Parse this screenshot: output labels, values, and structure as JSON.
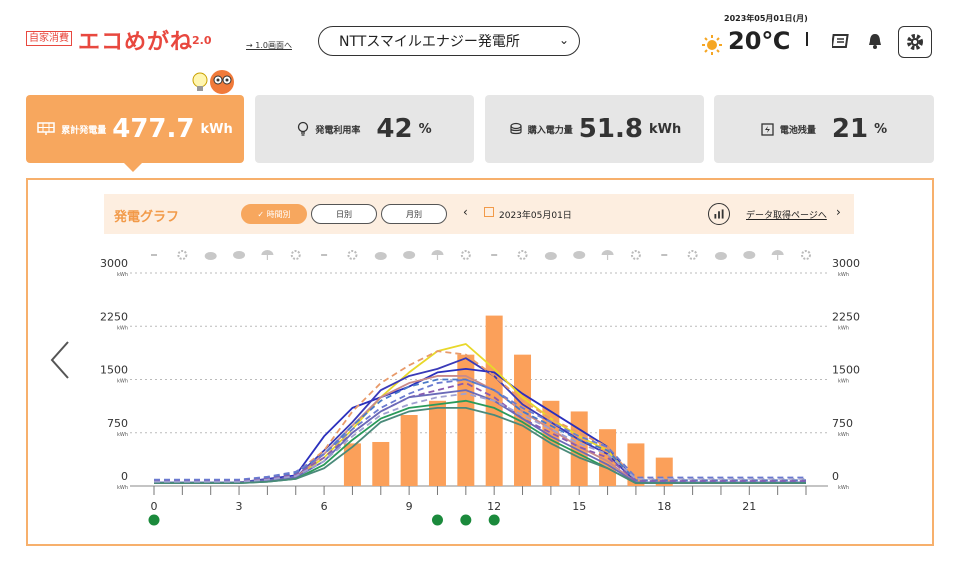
{
  "header": {
    "logo_badge": "自家消費",
    "logo_title": "エコめがね",
    "logo_version": "2.0",
    "old_screen_link": "→ 1.0画面へ",
    "plant_name": "NTTスマイルエナジー発電所",
    "date": "2023年05月01日(月)",
    "temperature": "20℃",
    "weather_icon": "sun-icon",
    "icons": [
      "news-icon",
      "bell-icon",
      "gear-icon"
    ]
  },
  "stats": [
    {
      "label": "累計発電量",
      "value": "477.7",
      "unit": "kWh",
      "icon": "solar-panel-icon",
      "active": true
    },
    {
      "label": "発電利用率",
      "value": "42",
      "unit": "%",
      "icon": "bulb-icon",
      "active": false
    },
    {
      "label": "購入電力量",
      "value": "51.8",
      "unit": "kWh",
      "icon": "coins-icon",
      "active": false
    },
    {
      "label": "電池残量",
      "value": "21",
      "unit": "%",
      "icon": "battery-icon",
      "active": false
    }
  ],
  "graph": {
    "title": "発電グラフ",
    "tabs": [
      {
        "label": "時間別",
        "selected": true
      },
      {
        "label": "日別",
        "selected": false
      },
      {
        "label": "月別",
        "selected": false
      }
    ],
    "date": "2023年05月01日",
    "download_link": "データ取得ページへ"
  },
  "colors": {
    "accent": "#f7a75e",
    "bar": "#fba05a",
    "event": "#1b8a3c"
  },
  "chart_data": {
    "type": "bar",
    "y_unit": "kWh",
    "ylim": [
      0,
      3000
    ],
    "yticks": [
      0,
      750,
      1500,
      2250,
      3000
    ],
    "xticks": [
      0,
      3,
      6,
      9,
      12,
      15,
      18,
      21
    ],
    "xlim": [
      0,
      23
    ],
    "weather_row": [
      "dash",
      "sun",
      "cloud-sun",
      "cloud",
      "umbrella",
      "sun",
      "dash",
      "sun",
      "cloud-sun",
      "cloud",
      "umbrella",
      "sun",
      "dash",
      "sun",
      "cloud-sun",
      "cloud",
      "umbrella",
      "sun",
      "dash",
      "sun",
      "cloud-sun",
      "cloud",
      "umbrella",
      "sun"
    ],
    "bars": {
      "x": [
        7,
        8,
        9,
        10,
        11,
        12,
        13,
        14,
        15,
        16,
        17,
        18
      ],
      "values": [
        600,
        620,
        1000,
        1200,
        1850,
        2400,
        1850,
        1200,
        1050,
        800,
        600,
        400
      ]
    },
    "series": [
      {
        "color": "#2a2fbd",
        "dash": false,
        "values": [
          50,
          50,
          50,
          50,
          100,
          150,
          700,
          1100,
          1250,
          1400,
          1600,
          1650,
          1600,
          1300,
          1050,
          800,
          550,
          50,
          50,
          50,
          50,
          50,
          50,
          50
        ]
      },
      {
        "color": "#e8d82a",
        "dash": false,
        "values": [
          50,
          50,
          50,
          50,
          80,
          120,
          400,
          800,
          1250,
          1600,
          1900,
          2000,
          1650,
          1250,
          950,
          700,
          500,
          50,
          50,
          50,
          50,
          50,
          50,
          50
        ]
      },
      {
        "color": "#3a3ab8",
        "dash": false,
        "values": [
          50,
          50,
          50,
          50,
          80,
          120,
          500,
          900,
          1350,
          1550,
          1650,
          1800,
          1550,
          1150,
          900,
          650,
          450,
          50,
          50,
          50,
          50,
          50,
          50,
          50
        ]
      },
      {
        "color": "#c98a8a",
        "dash": false,
        "values": [
          50,
          50,
          50,
          50,
          80,
          120,
          450,
          850,
          1250,
          1450,
          1550,
          1550,
          1350,
          1050,
          800,
          550,
          350,
          50,
          50,
          50,
          50,
          50,
          50,
          50
        ]
      },
      {
        "color": "#e89a6a",
        "dash": true,
        "values": [
          80,
          80,
          80,
          80,
          120,
          180,
          500,
          1050,
          1450,
          1700,
          1900,
          1850,
          1550,
          1200,
          950,
          750,
          550,
          80,
          80,
          80,
          80,
          80,
          80,
          80
        ]
      },
      {
        "color": "#4a7ac8",
        "dash": true,
        "values": [
          80,
          80,
          80,
          80,
          120,
          180,
          450,
          850,
          1200,
          1400,
          1500,
          1500,
          1350,
          1050,
          850,
          650,
          500,
          80,
          80,
          80,
          80,
          80,
          80,
          80
        ]
      },
      {
        "color": "#8a5ab0",
        "dash": true,
        "values": [
          70,
          70,
          70,
          70,
          100,
          160,
          400,
          750,
          1050,
          1250,
          1350,
          1450,
          1250,
          950,
          750,
          550,
          400,
          70,
          70,
          70,
          70,
          70,
          70,
          70
        ]
      },
      {
        "color": "#6a6ab8",
        "dash": false,
        "values": [
          50,
          50,
          50,
          50,
          80,
          120,
          350,
          750,
          1050,
          1250,
          1300,
          1350,
          1200,
          950,
          700,
          500,
          300,
          50,
          50,
          50,
          50,
          50,
          50,
          50
        ]
      },
      {
        "color": "#2a9a5a",
        "dash": false,
        "values": [
          40,
          40,
          40,
          40,
          60,
          100,
          300,
          650,
          950,
          1100,
          1150,
          1200,
          1100,
          900,
          650,
          450,
          250,
          40,
          40,
          40,
          40,
          40,
          40,
          40
        ]
      },
      {
        "color": "#4a8a7a",
        "dash": false,
        "values": [
          40,
          40,
          40,
          40,
          60,
          100,
          250,
          550,
          900,
          1050,
          1100,
          1100,
          1000,
          850,
          600,
          400,
          250,
          40,
          40,
          40,
          40,
          40,
          40,
          40
        ]
      },
      {
        "color": "#6a7ad0",
        "dash": true,
        "values": [
          90,
          90,
          90,
          90,
          130,
          200,
          450,
          800,
          1100,
          1300,
          1450,
          1500,
          1350,
          1100,
          900,
          700,
          550,
          120,
          120,
          120,
          120,
          120,
          120,
          120
        ]
      },
      {
        "color": "#a0a0d0",
        "dash": true,
        "values": [
          60,
          60,
          60,
          60,
          90,
          140,
          350,
          700,
          1000,
          1150,
          1250,
          1300,
          1200,
          1000,
          800,
          600,
          450,
          100,
          100,
          100,
          100,
          100,
          100,
          100
        ]
      }
    ],
    "event_markers_x": [
      0,
      10,
      11,
      12
    ]
  }
}
